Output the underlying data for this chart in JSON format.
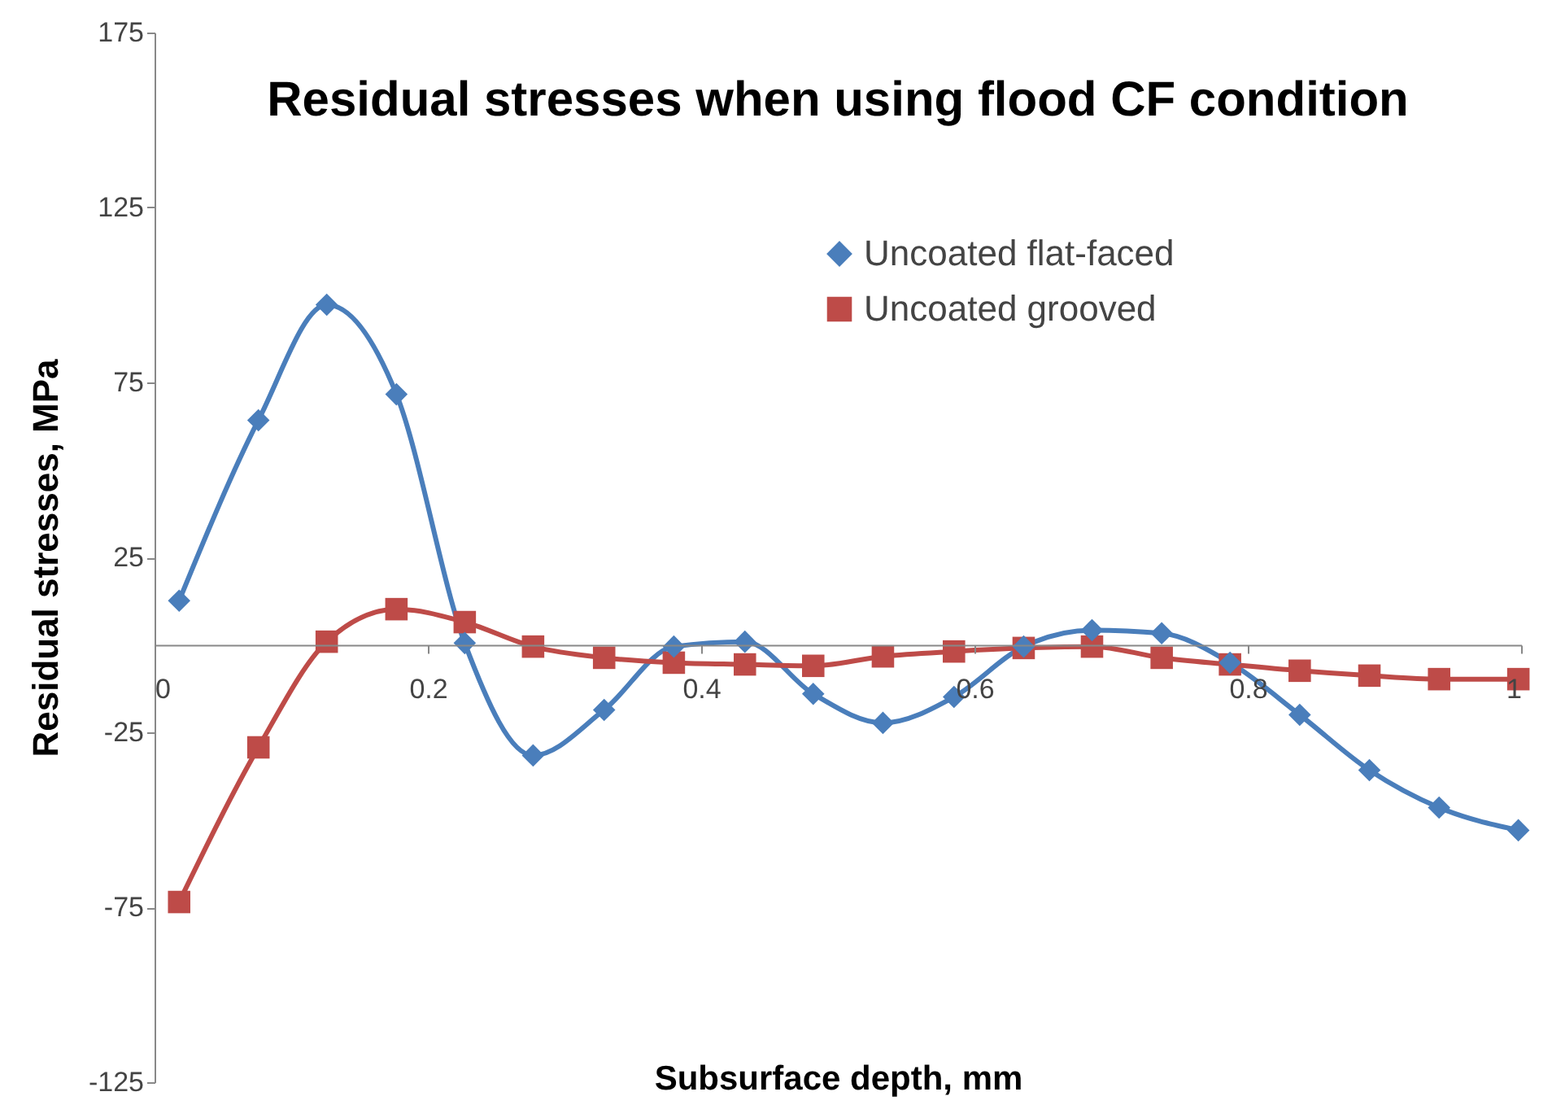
{
  "chart_data": {
    "type": "line",
    "title": "Residual stresses when using flood CF condition",
    "xlabel": "Subsurface depth, mm",
    "ylabel": "Residual stresses, MPa",
    "xlim": [
      0,
      1
    ],
    "xticks": [
      0,
      0.2,
      0.4,
      0.6,
      0.8,
      1
    ],
    "ylim": [
      -125,
      175
    ],
    "yticks": [
      -125,
      -75,
      -25,
      25,
      75,
      125,
      175
    ],
    "x": [
      0.018,
      0.076,
      0.126,
      0.177,
      0.227,
      0.277,
      0.329,
      0.38,
      0.432,
      0.482,
      0.533,
      0.585,
      0.636,
      0.686,
      0.737,
      0.787,
      0.838,
      0.889,
      0.94,
      0.998
    ],
    "grid": false,
    "legend": "top right",
    "series": [
      {
        "name": "Uncoated flat-faced",
        "color": "#4a7ebb",
        "marker": "diamond",
        "values": [
          12.6,
          64.2,
          97.2,
          71.6,
          0.5,
          -31.6,
          -18.6,
          -0.5,
          0.9,
          -14,
          -22.3,
          -14.9,
          -0.5,
          4.2,
          3.3,
          -5.1,
          -20,
          -35.8,
          -46.5,
          -53
        ]
      },
      {
        "name": "Uncoated grooved",
        "color": "#be4b48",
        "marker": "square",
        "values": [
          -73.5,
          -29.3,
          0.9,
          10.2,
          6.5,
          -0.5,
          -3.7,
          -5.1,
          -5.6,
          -6,
          -3.3,
          -1.9,
          -0.9,
          -0.5,
          -3.7,
          -5.6,
          -7.4,
          -8.8,
          -9.8,
          -9.8
        ]
      }
    ]
  }
}
